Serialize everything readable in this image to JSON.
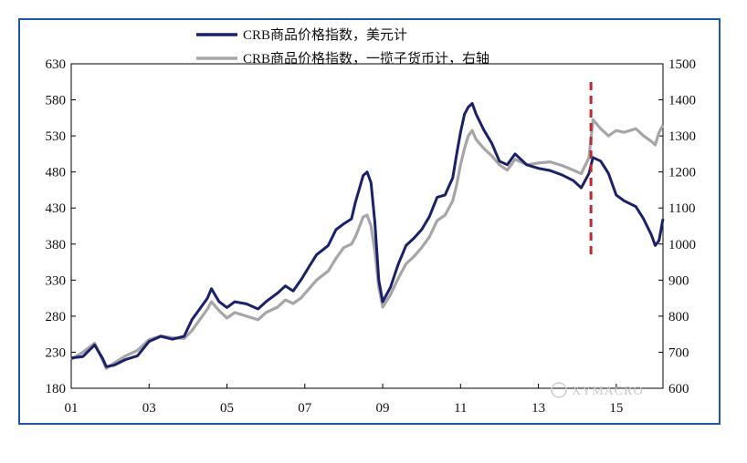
{
  "chart_data": {
    "type": "line",
    "title": "",
    "xlabel": "",
    "ylabel": "",
    "x_tick_labels": [
      "01",
      "03",
      "05",
      "07",
      "09",
      "11",
      "13",
      "15"
    ],
    "x_range": [
      2001.0,
      2016.2
    ],
    "y_left": {
      "range": [
        180,
        630
      ],
      "ticks": [
        180,
        230,
        280,
        330,
        380,
        430,
        480,
        530,
        580,
        630
      ]
    },
    "y_right": {
      "range": [
        600,
        1500
      ],
      "ticks": [
        600,
        700,
        800,
        900,
        1000,
        1100,
        1200,
        1300,
        1400,
        1500
      ]
    },
    "legend": {
      "placement": "top-center"
    },
    "grid": false,
    "series": [
      {
        "name": "CRB商品价格指数，美元计",
        "axis": "left",
        "color": "#1a1f6e",
        "points": [
          [
            2001.0,
            222
          ],
          [
            2001.3,
            224
          ],
          [
            2001.6,
            240
          ],
          [
            2001.8,
            222
          ],
          [
            2001.9,
            210
          ],
          [
            2002.1,
            212
          ],
          [
            2002.4,
            220
          ],
          [
            2002.7,
            225
          ],
          [
            2003.0,
            245
          ],
          [
            2003.3,
            252
          ],
          [
            2003.6,
            248
          ],
          [
            2003.9,
            252
          ],
          [
            2004.1,
            275
          ],
          [
            2004.3,
            290
          ],
          [
            2004.5,
            305
          ],
          [
            2004.6,
            318
          ],
          [
            2004.8,
            300
          ],
          [
            2005.0,
            292
          ],
          [
            2005.2,
            300
          ],
          [
            2005.5,
            297
          ],
          [
            2005.8,
            290
          ],
          [
            2006.0,
            300
          ],
          [
            2006.3,
            312
          ],
          [
            2006.5,
            322
          ],
          [
            2006.7,
            315
          ],
          [
            2006.9,
            330
          ],
          [
            2007.1,
            348
          ],
          [
            2007.3,
            365
          ],
          [
            2007.6,
            378
          ],
          [
            2007.8,
            400
          ],
          [
            2008.0,
            408
          ],
          [
            2008.2,
            415
          ],
          [
            2008.3,
            438
          ],
          [
            2008.5,
            475
          ],
          [
            2008.6,
            480
          ],
          [
            2008.7,
            465
          ],
          [
            2008.8,
            410
          ],
          [
            2008.9,
            330
          ],
          [
            2009.0,
            300
          ],
          [
            2009.2,
            320
          ],
          [
            2009.4,
            352
          ],
          [
            2009.6,
            378
          ],
          [
            2009.8,
            388
          ],
          [
            2010.0,
            400
          ],
          [
            2010.2,
            418
          ],
          [
            2010.4,
            445
          ],
          [
            2010.6,
            448
          ],
          [
            2010.8,
            472
          ],
          [
            2010.9,
            505
          ],
          [
            2011.0,
            535
          ],
          [
            2011.1,
            560
          ],
          [
            2011.2,
            570
          ],
          [
            2011.3,
            575
          ],
          [
            2011.4,
            560
          ],
          [
            2011.6,
            538
          ],
          [
            2011.8,
            520
          ],
          [
            2012.0,
            495
          ],
          [
            2012.2,
            490
          ],
          [
            2012.4,
            505
          ],
          [
            2012.7,
            490
          ],
          [
            2013.0,
            485
          ],
          [
            2013.3,
            482
          ],
          [
            2013.6,
            476
          ],
          [
            2013.9,
            468
          ],
          [
            2014.1,
            458
          ],
          [
            2014.3,
            478
          ],
          [
            2014.4,
            500
          ],
          [
            2014.6,
            495
          ],
          [
            2014.8,
            478
          ],
          [
            2015.0,
            448
          ],
          [
            2015.2,
            440
          ],
          [
            2015.5,
            432
          ],
          [
            2015.7,
            415
          ],
          [
            2015.9,
            393
          ],
          [
            2016.0,
            378
          ],
          [
            2016.1,
            385
          ],
          [
            2016.2,
            415
          ]
        ]
      },
      {
        "name": "CRB商品价格指数，一揽子货币计，右轴",
        "axis": "right",
        "color": "#a6a6a6",
        "points": [
          [
            2001.0,
            680
          ],
          [
            2001.3,
            700
          ],
          [
            2001.6,
            725
          ],
          [
            2001.8,
            680
          ],
          [
            2001.9,
            655
          ],
          [
            2002.1,
            670
          ],
          [
            2002.4,
            690
          ],
          [
            2002.7,
            705
          ],
          [
            2003.0,
            735
          ],
          [
            2003.3,
            745
          ],
          [
            2003.6,
            740
          ],
          [
            2003.9,
            738
          ],
          [
            2004.1,
            760
          ],
          [
            2004.3,
            790
          ],
          [
            2004.5,
            820
          ],
          [
            2004.6,
            840
          ],
          [
            2004.8,
            815
          ],
          [
            2005.0,
            795
          ],
          [
            2005.2,
            810
          ],
          [
            2005.5,
            800
          ],
          [
            2005.8,
            790
          ],
          [
            2006.0,
            810
          ],
          [
            2006.3,
            825
          ],
          [
            2006.5,
            845
          ],
          [
            2006.7,
            835
          ],
          [
            2006.9,
            850
          ],
          [
            2007.1,
            875
          ],
          [
            2007.3,
            900
          ],
          [
            2007.6,
            925
          ],
          [
            2007.8,
            960
          ],
          [
            2008.0,
            990
          ],
          [
            2008.2,
            1000
          ],
          [
            2008.3,
            1020
          ],
          [
            2008.5,
            1075
          ],
          [
            2008.6,
            1080
          ],
          [
            2008.7,
            1050
          ],
          [
            2008.8,
            980
          ],
          [
            2008.9,
            880
          ],
          [
            2009.0,
            825
          ],
          [
            2009.2,
            860
          ],
          [
            2009.4,
            905
          ],
          [
            2009.6,
            945
          ],
          [
            2009.8,
            965
          ],
          [
            2010.0,
            990
          ],
          [
            2010.2,
            1020
          ],
          [
            2010.4,
            1065
          ],
          [
            2010.6,
            1080
          ],
          [
            2010.8,
            1120
          ],
          [
            2010.9,
            1165
          ],
          [
            2011.0,
            1220
          ],
          [
            2011.1,
            1265
          ],
          [
            2011.2,
            1300
          ],
          [
            2011.3,
            1315
          ],
          [
            2011.4,
            1290
          ],
          [
            2011.6,
            1265
          ],
          [
            2011.8,
            1245
          ],
          [
            2012.0,
            1220
          ],
          [
            2012.2,
            1205
          ],
          [
            2012.4,
            1235
          ],
          [
            2012.7,
            1220
          ],
          [
            2013.0,
            1225
          ],
          [
            2013.3,
            1228
          ],
          [
            2013.6,
            1218
          ],
          [
            2013.9,
            1205
          ],
          [
            2014.1,
            1195
          ],
          [
            2014.3,
            1240
          ],
          [
            2014.4,
            1345
          ],
          [
            2014.6,
            1320
          ],
          [
            2014.8,
            1300
          ],
          [
            2015.0,
            1315
          ],
          [
            2015.2,
            1310
          ],
          [
            2015.5,
            1320
          ],
          [
            2015.7,
            1300
          ],
          [
            2015.9,
            1285
          ],
          [
            2016.0,
            1275
          ],
          [
            2016.1,
            1310
          ],
          [
            2016.2,
            1330
          ]
        ]
      }
    ],
    "annotations": [
      {
        "type": "vertical-dashed-line",
        "x": 2014.35,
        "color": "#c0282d"
      }
    ]
  },
  "watermark": "XYMACRO"
}
